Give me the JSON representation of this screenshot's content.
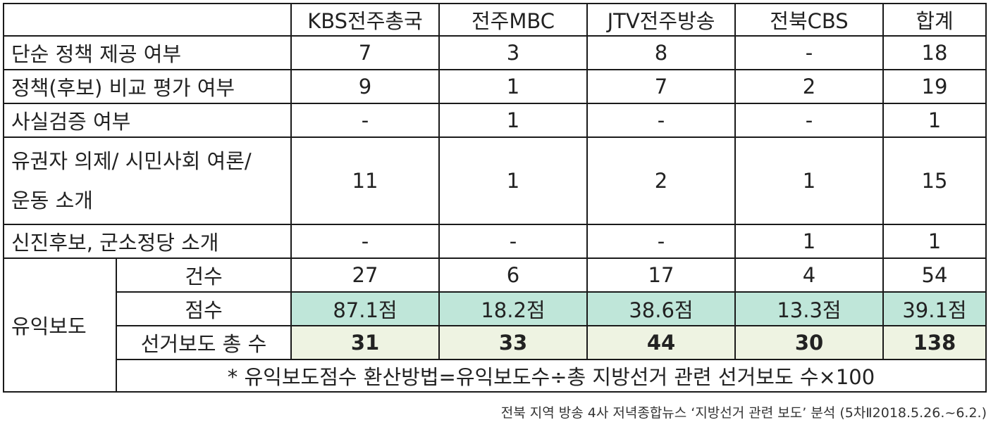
{
  "table": {
    "headers": [
      "",
      "KBS전주총국",
      "전주MBC",
      "JTV전주방송",
      "전북CBS",
      "합계"
    ],
    "rows": [
      {
        "label": "단순 정책 제공 여부",
        "cells": [
          "7",
          "3",
          "8",
          "-",
          "18"
        ]
      },
      {
        "label": "정책(후보) 비교 평가 여부",
        "cells": [
          "9",
          "1",
          "7",
          "2",
          "19"
        ]
      },
      {
        "label": "사실검증 여부",
        "cells": [
          "-",
          "1",
          "-",
          "-",
          "1"
        ]
      },
      {
        "label_line1": "유권자 의제/ 시민사회 여론/",
        "label_line2": "운동 소개",
        "cells": [
          "11",
          "1",
          "2",
          "1",
          "15"
        ]
      },
      {
        "label": "신진후보, 군소정당 소개",
        "cells": [
          "-",
          "-",
          "-",
          "1",
          "1"
        ]
      }
    ],
    "group": {
      "label": "유익보도",
      "sub_rows": [
        {
          "label": "건수",
          "cells": [
            "27",
            "6",
            "17",
            "4",
            "54"
          ]
        },
        {
          "label": "점수",
          "cells": [
            "87.1점",
            "18.2점",
            "38.6점",
            "13.3점",
            "39.1점"
          ]
        },
        {
          "label": "선거보도 총 수",
          "cells": [
            "31",
            "33",
            "44",
            "30",
            "138"
          ]
        }
      ],
      "note": "* 유익보도점수 환산방법=유익보도수÷총 지방선거 관련 선거보도 수×100"
    },
    "colors": {
      "score_row": "#bfe6d9",
      "total_row": "#eef3e2",
      "border": "#1a1a1a"
    }
  },
  "caption": "전북 지역 방송 4사 저녁종합뉴스 ‘지방선거 관련 보도’ 분석 (5차Ⅱ2018.5.26.~6.2.)"
}
